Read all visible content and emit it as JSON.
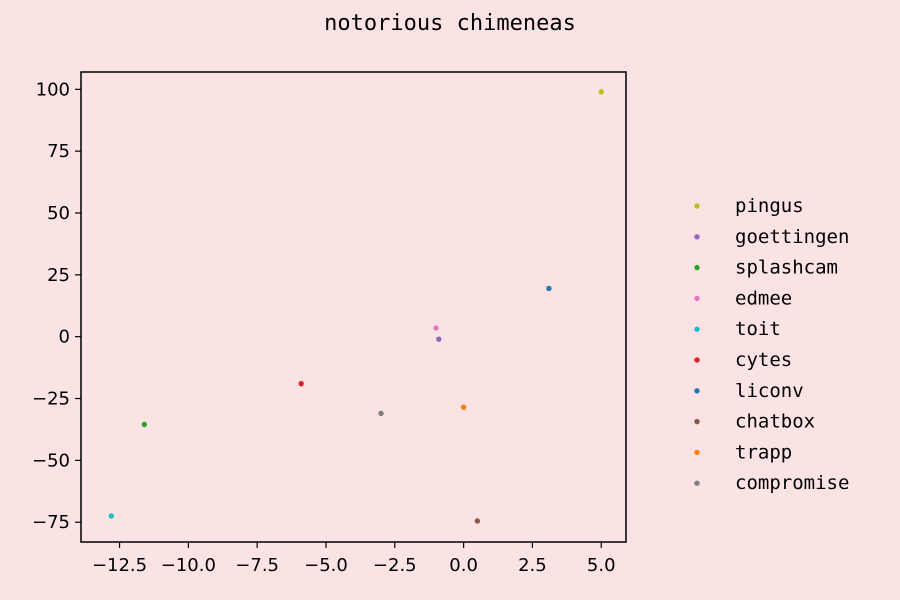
{
  "chart_data": {
    "type": "scatter",
    "title": "notorious chimeneas",
    "xlabel": "",
    "ylabel": "",
    "xlim": [
      -13.9,
      5.9
    ],
    "ylim": [
      -83,
      107
    ],
    "xticks": [
      -12.5,
      -10.0,
      -7.5,
      -5.0,
      -2.5,
      0.0,
      2.5,
      5.0
    ],
    "xtick_labels": [
      "−12.5",
      "−10.0",
      "−7.5",
      "−5.0",
      "−2.5",
      "0.0",
      "2.5",
      "5.0"
    ],
    "yticks": [
      -75,
      -50,
      -25,
      0,
      25,
      50,
      75,
      100
    ],
    "ytick_labels": [
      "−75",
      "−50",
      "−25",
      "0",
      "25",
      "50",
      "75",
      "100"
    ],
    "grid": false,
    "legend_position": "right-outside",
    "series": [
      {
        "name": "pingus",
        "color": "#bcbd22",
        "x": [
          5.0
        ],
        "y": [
          99
        ]
      },
      {
        "name": "goettingen",
        "color": "#9467bd",
        "x": [
          -0.9
        ],
        "y": [
          -1
        ]
      },
      {
        "name": "splashcam",
        "color": "#2ca02c",
        "x": [
          -11.6
        ],
        "y": [
          -35.5
        ]
      },
      {
        "name": "edmee",
        "color": "#e377c2",
        "x": [
          -1.0
        ],
        "y": [
          3.5
        ]
      },
      {
        "name": "toit",
        "color": "#17becf",
        "x": [
          -12.8
        ],
        "y": [
          -72.5
        ]
      },
      {
        "name": "cytes",
        "color": "#d62728",
        "x": [
          -5.9
        ],
        "y": [
          -19
        ]
      },
      {
        "name": "liconv",
        "color": "#1f77b4",
        "x": [
          3.1
        ],
        "y": [
          19.5
        ]
      },
      {
        "name": "chatbox",
        "color": "#8c564b",
        "x": [
          0.5
        ],
        "y": [
          -74.5
        ]
      },
      {
        "name": "trapp",
        "color": "#ff7f0e",
        "x": [
          0.0
        ],
        "y": [
          -28.5
        ]
      },
      {
        "name": "compromise",
        "color": "#7f7f7f",
        "x": [
          -3.0
        ],
        "y": [
          -31
        ]
      }
    ]
  }
}
